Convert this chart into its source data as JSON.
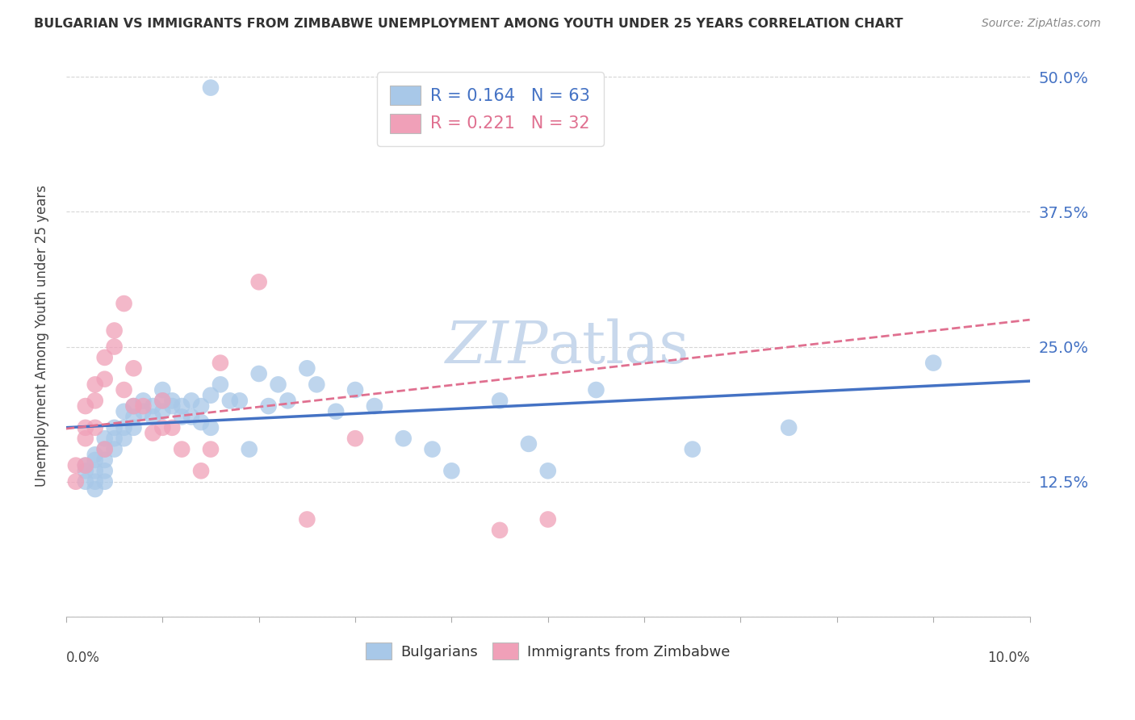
{
  "title": "BULGARIAN VS IMMIGRANTS FROM ZIMBABWE UNEMPLOYMENT AMONG YOUTH UNDER 25 YEARS CORRELATION CHART",
  "source": "Source: ZipAtlas.com",
  "ylabel": "Unemployment Among Youth under 25 years",
  "ytick_labels": [
    "",
    "12.5%",
    "25.0%",
    "37.5%",
    "50.0%"
  ],
  "ytick_values": [
    0.0,
    0.125,
    0.25,
    0.375,
    0.5
  ],
  "xlim": [
    0,
    0.1
  ],
  "ylim": [
    0,
    0.52
  ],
  "R_bulgarian": 0.164,
  "N_bulgarian": 63,
  "R_zimbabwe": 0.221,
  "N_zimbabwe": 32,
  "color_bulgarian": "#a8c8e8",
  "color_zimbabwe": "#f0a0b8",
  "color_line_bulgarian": "#4472c4",
  "color_line_zimbabwe": "#e07090",
  "watermark_color": "#c8d8ec",
  "bulgarian_x": [
    0.002,
    0.002,
    0.002,
    0.003,
    0.003,
    0.003,
    0.003,
    0.003,
    0.004,
    0.004,
    0.004,
    0.004,
    0.004,
    0.005,
    0.005,
    0.005,
    0.006,
    0.006,
    0.006,
    0.007,
    0.007,
    0.007,
    0.008,
    0.008,
    0.009,
    0.009,
    0.01,
    0.01,
    0.01,
    0.011,
    0.011,
    0.012,
    0.012,
    0.013,
    0.013,
    0.014,
    0.014,
    0.015,
    0.015,
    0.016,
    0.017,
    0.018,
    0.019,
    0.02,
    0.021,
    0.022,
    0.023,
    0.025,
    0.026,
    0.028,
    0.03,
    0.032,
    0.035,
    0.038,
    0.04,
    0.045,
    0.048,
    0.05,
    0.055,
    0.065,
    0.075,
    0.09,
    0.015
  ],
  "bulgarian_y": [
    0.14,
    0.135,
    0.125,
    0.15,
    0.145,
    0.135,
    0.125,
    0.118,
    0.165,
    0.155,
    0.145,
    0.135,
    0.125,
    0.175,
    0.165,
    0.155,
    0.19,
    0.175,
    0.165,
    0.195,
    0.185,
    0.175,
    0.2,
    0.19,
    0.195,
    0.185,
    0.21,
    0.2,
    0.19,
    0.2,
    0.195,
    0.195,
    0.185,
    0.2,
    0.185,
    0.195,
    0.18,
    0.205,
    0.175,
    0.215,
    0.2,
    0.2,
    0.155,
    0.225,
    0.195,
    0.215,
    0.2,
    0.23,
    0.215,
    0.19,
    0.21,
    0.195,
    0.165,
    0.155,
    0.135,
    0.2,
    0.16,
    0.135,
    0.21,
    0.155,
    0.175,
    0.235,
    0.49
  ],
  "zimbabwe_x": [
    0.001,
    0.001,
    0.002,
    0.002,
    0.002,
    0.002,
    0.003,
    0.003,
    0.003,
    0.004,
    0.004,
    0.004,
    0.005,
    0.005,
    0.006,
    0.006,
    0.007,
    0.007,
    0.008,
    0.009,
    0.01,
    0.01,
    0.011,
    0.012,
    0.014,
    0.015,
    0.016,
    0.02,
    0.025,
    0.03,
    0.045,
    0.05
  ],
  "zimbabwe_y": [
    0.14,
    0.125,
    0.195,
    0.175,
    0.165,
    0.14,
    0.215,
    0.2,
    0.175,
    0.24,
    0.22,
    0.155,
    0.265,
    0.25,
    0.29,
    0.21,
    0.23,
    0.195,
    0.195,
    0.17,
    0.2,
    0.175,
    0.175,
    0.155,
    0.135,
    0.155,
    0.235,
    0.31,
    0.09,
    0.165,
    0.08,
    0.09
  ],
  "line_b_x0": 0.0,
  "line_b_y0": 0.145,
  "line_b_x1": 0.1,
  "line_b_y1": 0.23,
  "line_z_x0": 0.0,
  "line_z_y0": 0.145,
  "line_z_x1": 0.1,
  "line_z_y1": 0.275
}
